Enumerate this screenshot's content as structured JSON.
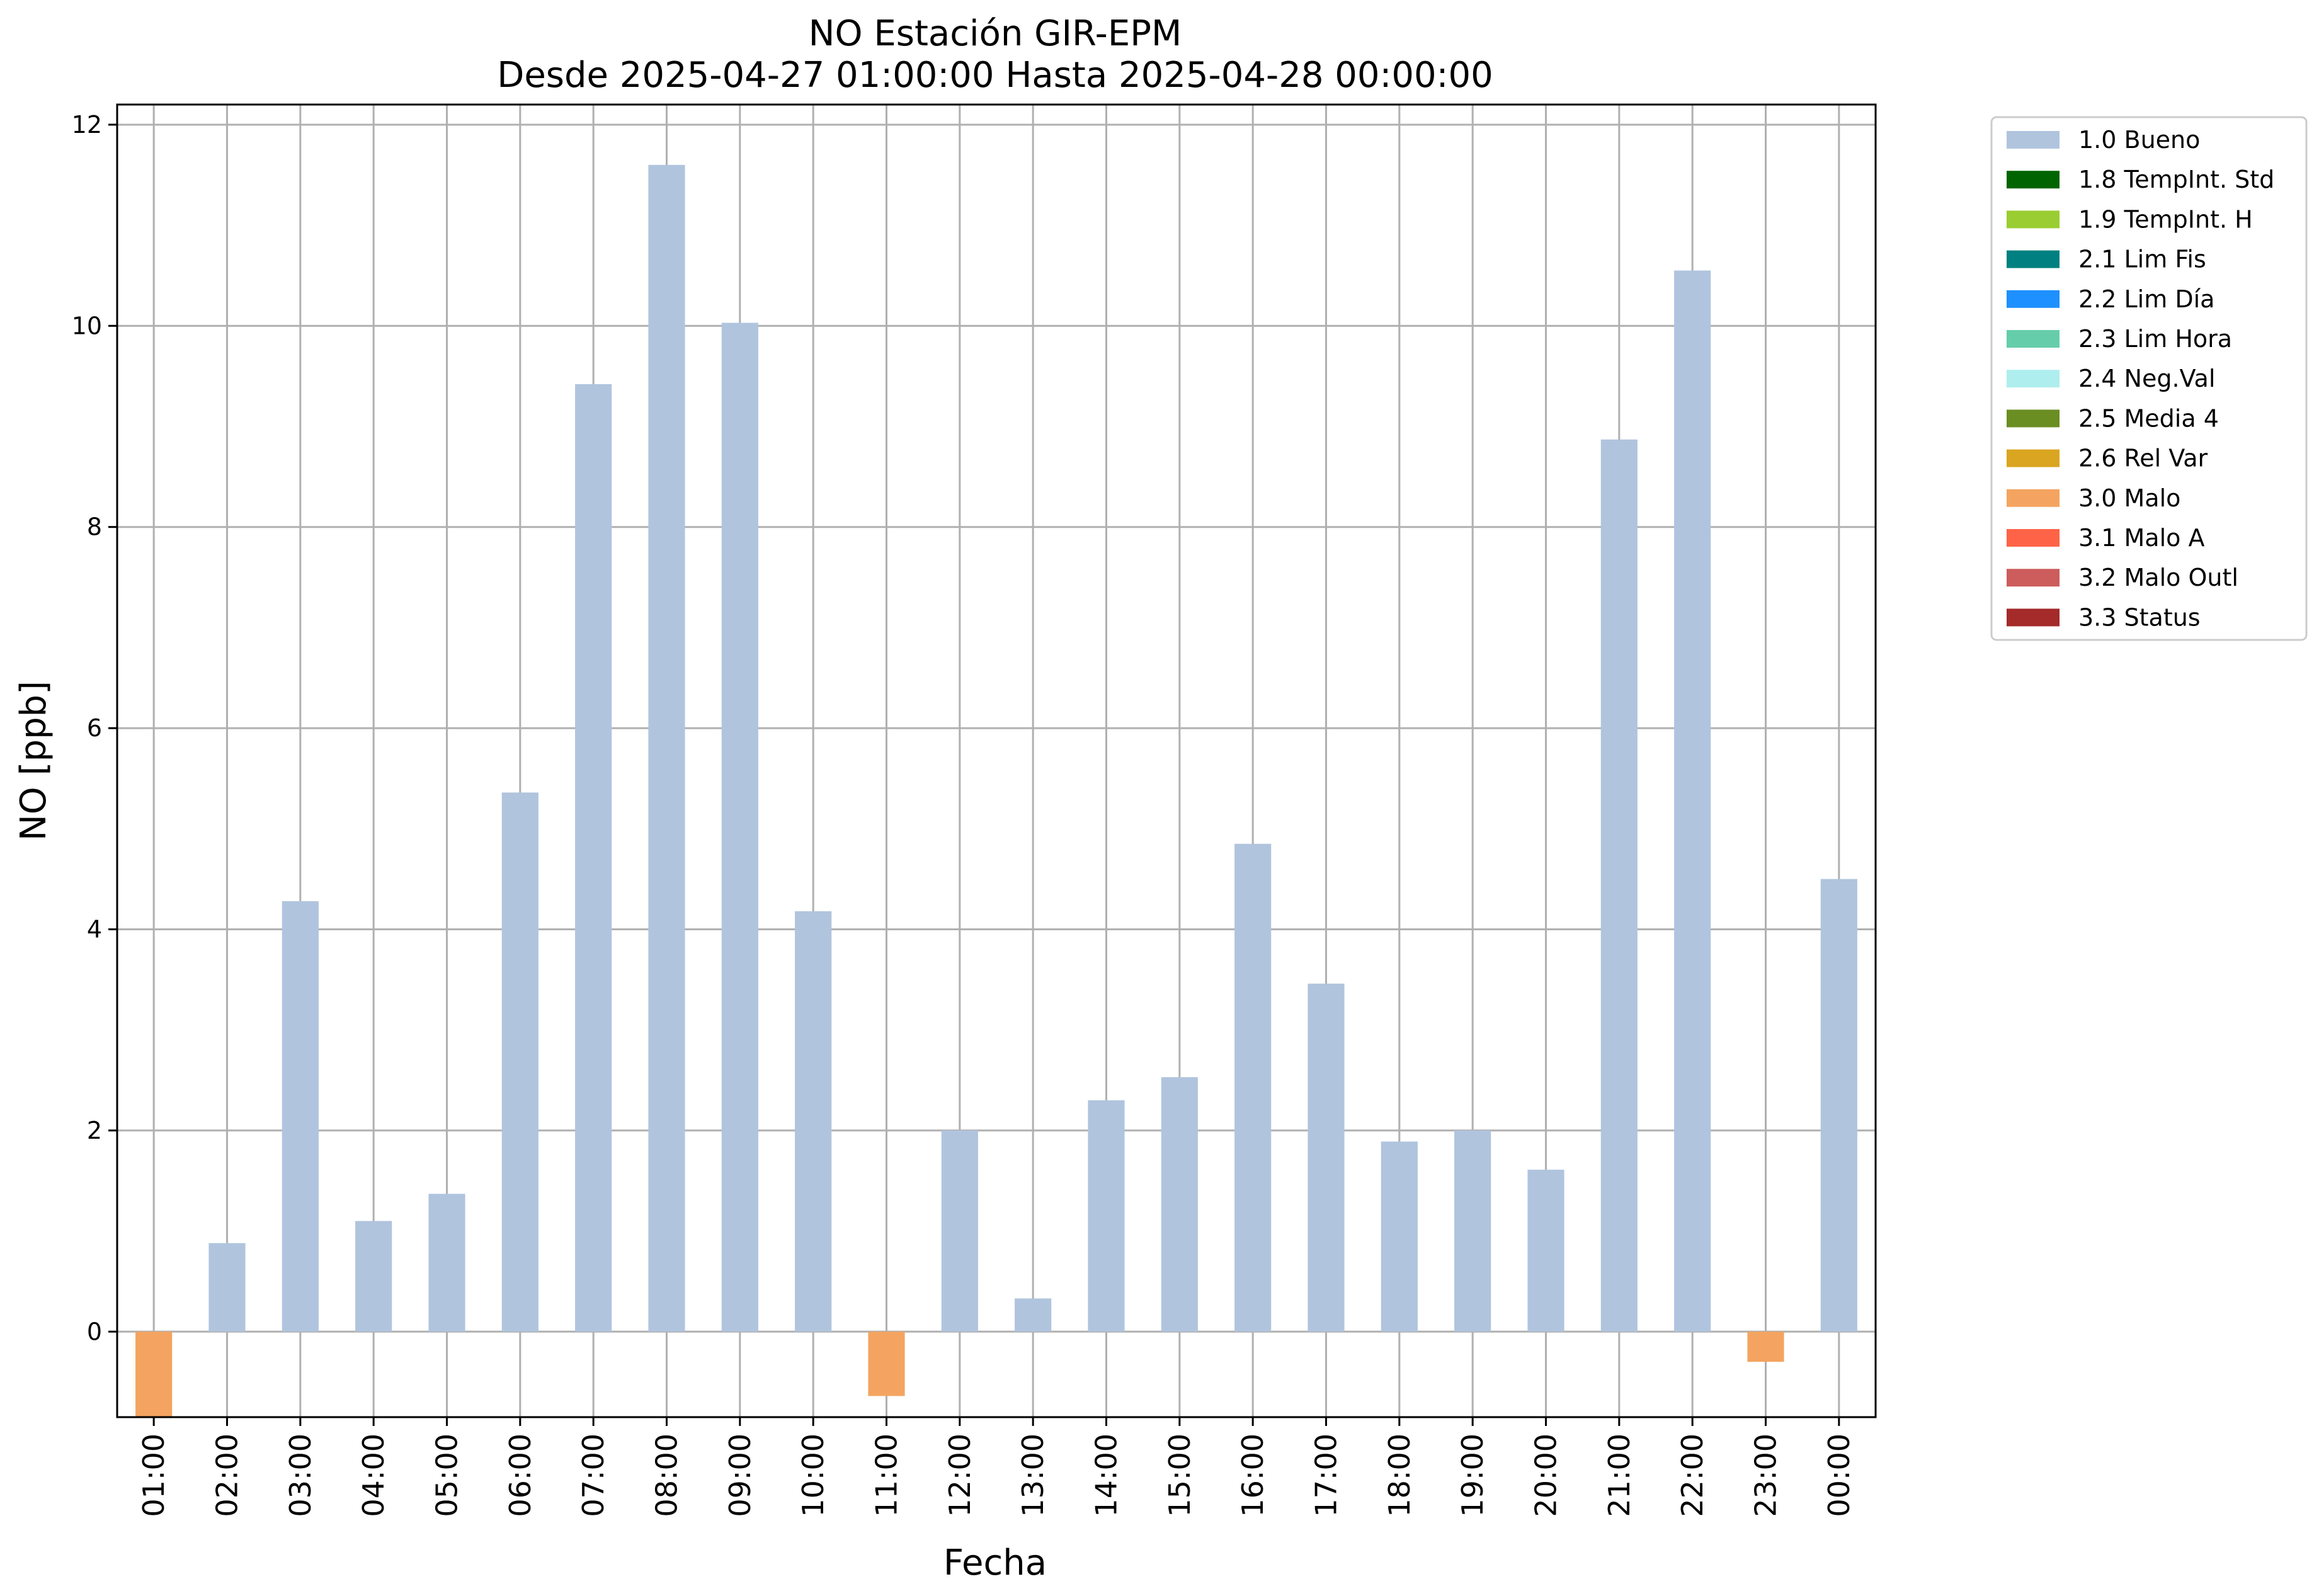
{
  "chart_data": {
    "type": "bar",
    "title": "NO Estación GIR-EPM",
    "subtitle": "Desde 2025-04-27 01:00:00 Hasta 2025-04-28 00:00:00",
    "xlabel": "Fecha",
    "ylabel": "NO [ppb]",
    "ylim": [
      -0.85,
      12.2
    ],
    "yticks": [
      0,
      2,
      4,
      6,
      8,
      10,
      12
    ],
    "grid": true,
    "legend_position": "outside-top-right",
    "categories": [
      "01:00",
      "02:00",
      "03:00",
      "04:00",
      "05:00",
      "06:00",
      "07:00",
      "08:00",
      "09:00",
      "10:00",
      "11:00",
      "12:00",
      "13:00",
      "14:00",
      "15:00",
      "16:00",
      "17:00",
      "18:00",
      "19:00",
      "20:00",
      "21:00",
      "22:00",
      "23:00",
      "00:00"
    ],
    "values": [
      -0.85,
      0.88,
      4.28,
      1.1,
      1.37,
      5.36,
      9.42,
      11.6,
      10.03,
      4.18,
      -0.64,
      2.0,
      0.33,
      2.3,
      2.53,
      4.85,
      3.46,
      1.89,
      2.0,
      1.61,
      8.87,
      10.55,
      -0.3,
      4.5
    ],
    "flags": [
      "3.0 Malo",
      "1.0 Bueno",
      "1.0 Bueno",
      "1.0 Bueno",
      "1.0 Bueno",
      "1.0 Bueno",
      "1.0 Bueno",
      "1.0 Bueno",
      "1.0 Bueno",
      "1.0 Bueno",
      "3.0 Malo",
      "1.0 Bueno",
      "1.0 Bueno",
      "1.0 Bueno",
      "1.0 Bueno",
      "1.0 Bueno",
      "1.0 Bueno",
      "1.0 Bueno",
      "1.0 Bueno",
      "1.0 Bueno",
      "1.0 Bueno",
      "1.0 Bueno",
      "3.0 Malo",
      "1.0 Bueno"
    ],
    "legend": [
      {
        "label": "1.0 Bueno",
        "color": "#b0c4de"
      },
      {
        "label": "1.8 TempInt. Std",
        "color": "#006400"
      },
      {
        "label": "1.9 TempInt. H",
        "color": "#9acd32"
      },
      {
        "label": "2.1 Lim Fis",
        "color": "#008080"
      },
      {
        "label": "2.2 Lim Día",
        "color": "#1e90ff"
      },
      {
        "label": "2.3 Lim Hora",
        "color": "#66cdaa"
      },
      {
        "label": "2.4 Neg.Val",
        "color": "#afeeee"
      },
      {
        "label": "2.5 Media 4",
        "color": "#6b8e23"
      },
      {
        "label": "2.6 Rel Var",
        "color": "#daa520"
      },
      {
        "label": "3.0 Malo",
        "color": "#f4a460"
      },
      {
        "label": "3.1 Malo A",
        "color": "#ff6347"
      },
      {
        "label": "3.2 Malo Outl",
        "color": "#cd5c5c"
      },
      {
        "label": "3.3 Status",
        "color": "#a52a2a"
      }
    ]
  }
}
